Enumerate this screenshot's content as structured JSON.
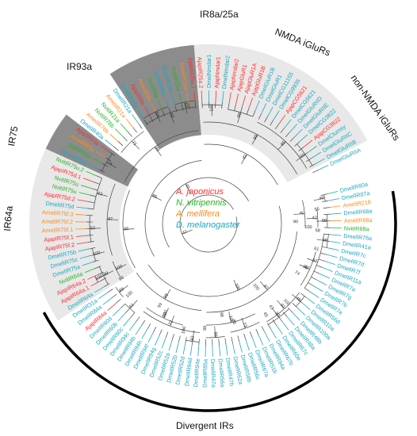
{
  "colors": {
    "japonicus": "#ff2b2b",
    "vitripennis": "#22b422",
    "mellifera": "#ff8a1a",
    "melanogaster": "#1aa6c0",
    "band_light": "#e8e8e8",
    "band_dark": "#8c8c8c",
    "arc": "#000000"
  },
  "groups": {
    "ir8a_25a": "IR8a/25a",
    "nmda": "NMDA iGluRs",
    "non_nmda": "non-NMDA iGluRs",
    "ir93a": "IR93a",
    "ir75": "IR75",
    "ir64a": "IR64a",
    "divergent": "Divergent IRs"
  },
  "legend": [
    {
      "label": "A. japonicus",
      "species": "japonicus"
    },
    {
      "label": "N. vitripennis",
      "species": "vitripennis"
    },
    {
      "label": "A. mellifera",
      "species": "mellifera"
    },
    {
      "label": "D. melanogaster",
      "species": "melanogaster"
    }
  ],
  "leaves": [
    {
      "name": "DmelIR60a",
      "sp": "melanogaster"
    },
    {
      "name": "DmelIR87a",
      "sp": "melanogaster"
    },
    {
      "name": "AmelIR218",
      "sp": "mellifera"
    },
    {
      "name": "DmelIR68a",
      "sp": "melanogaster"
    },
    {
      "name": "AmelIR68a",
      "sp": "mellifera"
    },
    {
      "name": "NvitIR68a",
      "sp": "vitripennis"
    },
    {
      "name": "DmelIR76a",
      "sp": "melanogaster"
    },
    {
      "name": "DmelIR41a",
      "sp": "melanogaster"
    },
    {
      "name": "DmelIR7c",
      "sp": "melanogaster"
    },
    {
      "name": "DmelIR7d",
      "sp": "melanogaster"
    },
    {
      "name": "DmelIR7f",
      "sp": "melanogaster"
    },
    {
      "name": "DmelIR11a",
      "sp": "melanogaster"
    },
    {
      "name": "DmelIR7a",
      "sp": "melanogaster"
    },
    {
      "name": "DmelIR7g",
      "sp": "melanogaster"
    },
    {
      "name": "DmelIR7b",
      "sp": "melanogaster"
    },
    {
      "name": "DmelIR7e",
      "sp": "melanogaster"
    },
    {
      "name": "DmelIR56d",
      "sp": "melanogaster"
    },
    {
      "name": "DmelIR10a",
      "sp": "melanogaster"
    },
    {
      "name": "DmelIR100a",
      "sp": "melanogaster"
    },
    {
      "name": "DmelIR48b",
      "sp": "melanogaster"
    },
    {
      "name": "DmelIR48a",
      "sp": "melanogaster"
    },
    {
      "name": "DmelIR67c",
      "sp": "melanogaster"
    },
    {
      "name": "DmelIR60e",
      "sp": "melanogaster"
    },
    {
      "name": "DmelIR67b",
      "sp": "melanogaster"
    },
    {
      "name": "DmelIR94a",
      "sp": "melanogaster"
    },
    {
      "name": "DmelIR51b",
      "sp": "melanogaster"
    },
    {
      "name": "DmelIR67a",
      "sp": "melanogaster"
    },
    {
      "name": "DmelIR56c",
      "sp": "melanogaster"
    },
    {
      "name": "DmelIR56b",
      "sp": "melanogaster"
    },
    {
      "name": "DmelIR62a",
      "sp": "melanogaster"
    },
    {
      "name": "DmelIR47b",
      "sp": "melanogaster"
    },
    {
      "name": "DmelIR56a",
      "sp": "melanogaster"
    },
    {
      "name": "DmelIR47a",
      "sp": "melanogaster"
    },
    {
      "name": "DmelIR85a",
      "sp": "melanogaster"
    },
    {
      "name": "DmelIR94e",
      "sp": "melanogaster"
    },
    {
      "name": "DmelIR94d",
      "sp": "melanogaster"
    },
    {
      "name": "DmelIR52d",
      "sp": "melanogaster"
    },
    {
      "name": "DmelIR52b",
      "sp": "melanogaster"
    },
    {
      "name": "DmelIR52a",
      "sp": "melanogaster"
    },
    {
      "name": "DmelIR52c",
      "sp": "melanogaster"
    },
    {
      "name": "DmelIR94g",
      "sp": "melanogaster"
    },
    {
      "name": "DmelIR94f",
      "sp": "melanogaster"
    },
    {
      "name": "DmelIR94h",
      "sp": "melanogaster"
    },
    {
      "name": "DmelIR94b",
      "sp": "melanogaster"
    },
    {
      "name": "DmelIR94c",
      "sp": "melanogaster"
    },
    {
      "name": "DmelIR60c",
      "sp": "melanogaster"
    },
    {
      "name": "DmelIR60b",
      "sp": "melanogaster"
    },
    {
      "name": "DmelIR60d",
      "sp": "melanogaster"
    },
    {
      "name": "AjapIR84a",
      "sp": "japonicus"
    },
    {
      "name": "DmelIR84a",
      "sp": "melanogaster"
    },
    {
      "name": "DmelIR31a",
      "sp": "melanogaster"
    },
    {
      "name": "DmelIR64a",
      "sp": "melanogaster"
    },
    {
      "name": "AjapIR64a.1",
      "sp": "japonicus"
    },
    {
      "name": "AjapIR64a.2",
      "sp": "japonicus"
    },
    {
      "name": "NvitIR64a",
      "sp": "vitripennis"
    },
    {
      "name": "DmelIR75a",
      "sp": "melanogaster"
    },
    {
      "name": "DmelIR75c",
      "sp": "melanogaster"
    },
    {
      "name": "DmelIR75b",
      "sp": "melanogaster"
    },
    {
      "name": "AjapIR75f.2",
      "sp": "japonicus"
    },
    {
      "name": "AjapIR75f.1",
      "sp": "japonicus"
    },
    {
      "name": "AmelIR75f.1",
      "sp": "mellifera"
    },
    {
      "name": "AmelIR75f.2",
      "sp": "mellifera"
    },
    {
      "name": "AmelIR75f.3",
      "sp": "mellifera"
    },
    {
      "name": "DmelIR75d",
      "sp": "melanogaster"
    },
    {
      "name": "AjapIR75d.2",
      "sp": "japonicus"
    },
    {
      "name": "NvitIR75u",
      "sp": "vitripennis"
    },
    {
      "name": "NvitIR75u",
      "sp": "vitripennis"
    },
    {
      "name": "AjapIR75d.1",
      "sp": "japonicus"
    },
    {
      "name": "NvitIR75u.2",
      "sp": "vitripennis"
    },
    {
      "name": "DmelIR93a",
      "sp": "melanogaster"
    },
    {
      "name": "NvitIR93a",
      "sp": "vitripennis"
    },
    {
      "name": "AmelIR93a",
      "sp": "mellifera"
    },
    {
      "name": "AjapIR93a",
      "sp": "japonicus"
    },
    {
      "name": "DmelIR40a",
      "sp": "melanogaster"
    },
    {
      "name": "AmelIR76b",
      "sp": "mellifera"
    },
    {
      "name": "NvitIR76b",
      "sp": "vitripennis"
    },
    {
      "name": "NvitIR21a",
      "sp": "vitripennis"
    },
    {
      "name": "AmelIR21a",
      "sp": "mellifera"
    },
    {
      "name": "DmelIR21a",
      "sp": "melanogaster"
    },
    {
      "name": "DmelIR25a",
      "sp": "melanogaster"
    },
    {
      "name": "AjapIR8a",
      "sp": "japonicus"
    },
    {
      "name": "AmelIR8a",
      "sp": "mellifera"
    },
    {
      "name": "NvitIR8a",
      "sp": "vitripennis"
    },
    {
      "name": "DmelIR8a",
      "sp": "melanogaster"
    },
    {
      "name": "DmelIR25a",
      "sp": "melanogaster"
    },
    {
      "name": "NvitIR25a",
      "sp": "vitripennis"
    },
    {
      "name": "AmelIR25a",
      "sp": "mellifera"
    },
    {
      "name": "AjapIR25a.1",
      "sp": "japonicus"
    },
    {
      "name": "AjapIR25a.2",
      "sp": "japonicus"
    },
    {
      "name": "DmelNmdar1",
      "sp": "melanogaster"
    },
    {
      "name": "AjapNmdar1",
      "sp": "japonicus"
    },
    {
      "name": "DmelNmdar2",
      "sp": "melanogaster"
    },
    {
      "name": "AjapNmdar2",
      "sp": "japonicus"
    },
    {
      "name": "AjapGluR1",
      "sp": "japonicus"
    },
    {
      "name": "AjapGluR1A",
      "sp": "japonicus"
    },
    {
      "name": "AjapGluR1B",
      "sp": "japonicus"
    },
    {
      "name": "DmelGluR1B",
      "sp": "melanogaster"
    },
    {
      "name": "DmelGluR1",
      "sp": "melanogaster"
    },
    {
      "name": "DmelCG11155",
      "sp": "melanogaster"
    },
    {
      "name": "DmelCG9935",
      "sp": "melanogaster"
    },
    {
      "name": "AjapCG5621",
      "sp": "japonicus"
    },
    {
      "name": "DmelCG5621",
      "sp": "melanogaster"
    },
    {
      "name": "DmelGluRIID",
      "sp": "melanogaster"
    },
    {
      "name": "DmelGluRIIE",
      "sp": "melanogaster"
    },
    {
      "name": "DmelCG3822",
      "sp": "melanogaster"
    },
    {
      "name": "AjapCG3822",
      "sp": "japonicus"
    },
    {
      "name": "DmelClumsy",
      "sp": "melanogaster"
    },
    {
      "name": "DmelGluRIIC",
      "sp": "melanogaster"
    },
    {
      "name": "DmelGluRIIB",
      "sp": "melanogaster"
    },
    {
      "name": "DmelGluRIIA",
      "sp": "melanogaster"
    }
  ],
  "bootstrap": [
    "49",
    "89",
    "42",
    "45",
    "97",
    "98",
    "57",
    "91",
    "49",
    "92",
    "73",
    "99",
    "100",
    "72",
    "92",
    "99",
    "61",
    "89",
    "97",
    "98",
    "100",
    "99",
    "100",
    "100",
    "100",
    "52",
    "63",
    "97",
    "74",
    "71",
    "68",
    "53",
    "63",
    "100",
    "99",
    "95",
    "60",
    "99",
    "99",
    "86",
    "85",
    "81",
    "40",
    "47",
    "55",
    "58",
    "100",
    "90",
    "99",
    "61",
    "74",
    "43",
    "100",
    "65",
    "86",
    "99",
    "98",
    "100",
    "100",
    "99",
    "100",
    "98",
    "100"
  ]
}
